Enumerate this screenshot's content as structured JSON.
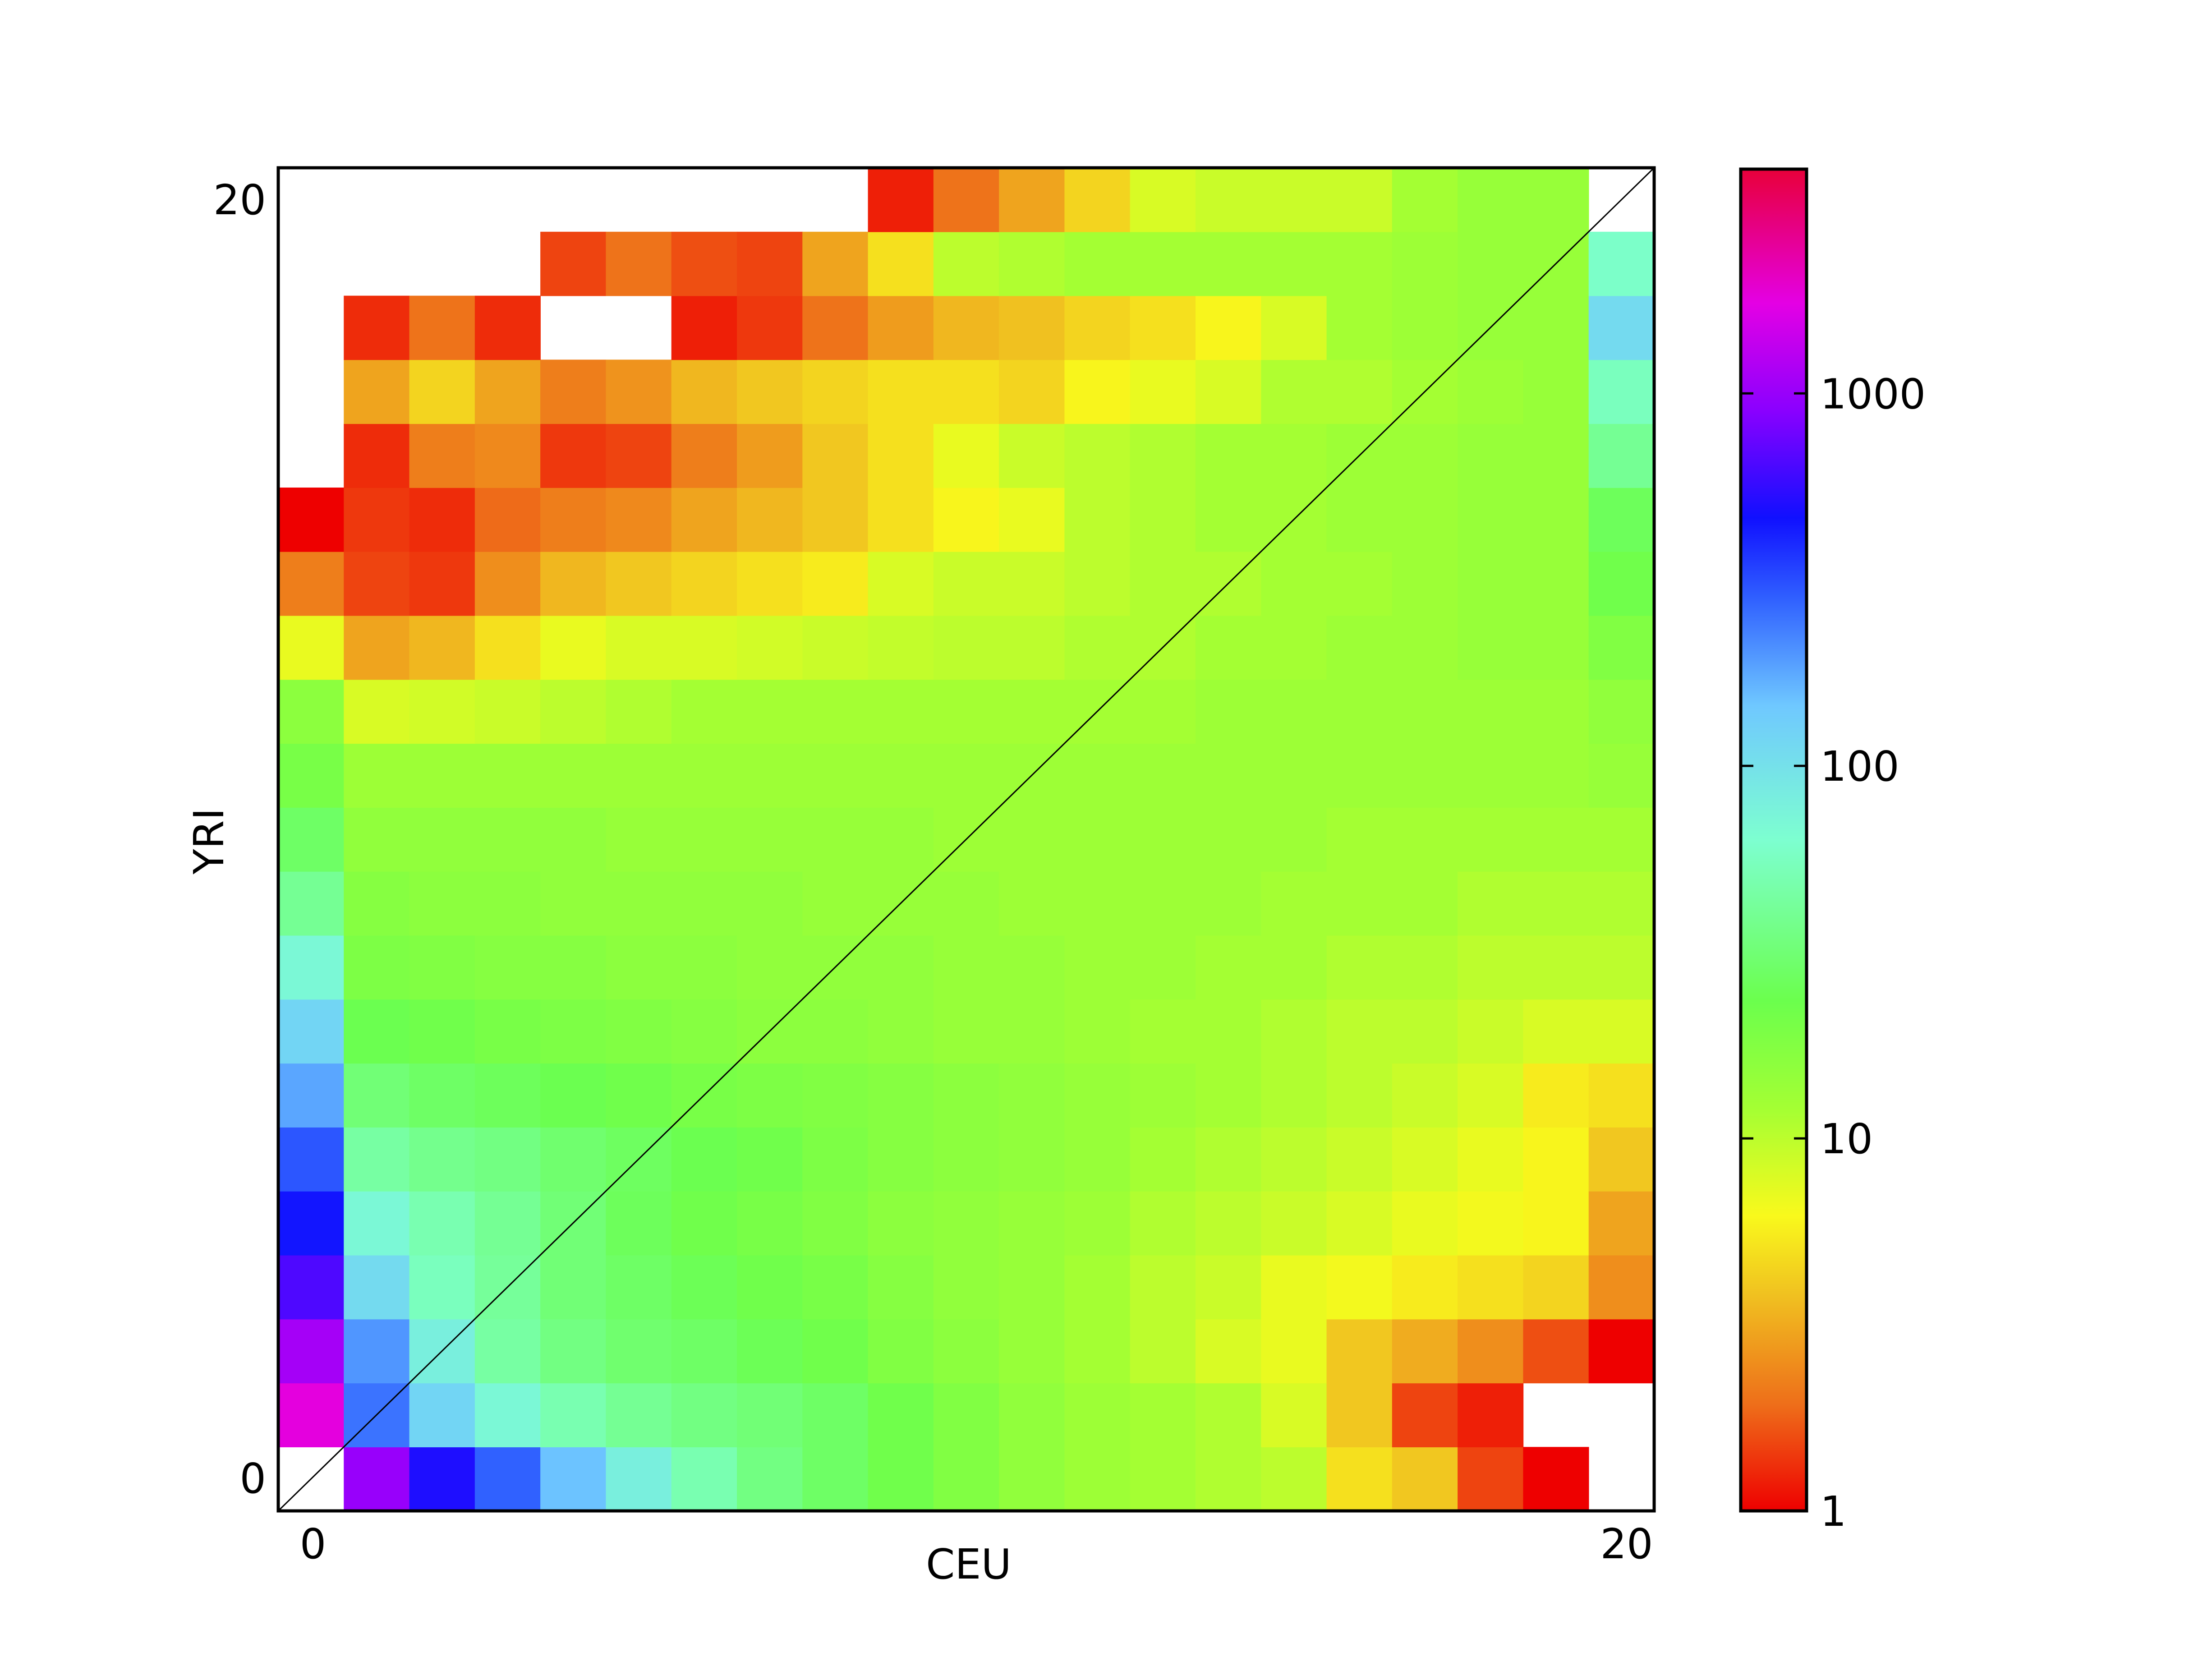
{
  "chart_data": {
    "type": "heatmap",
    "xlabel": "CEU",
    "ylabel": "YRI",
    "x_range": [
      0,
      20
    ],
    "y_range": [
      0,
      20
    ],
    "x_tick_labels": [
      "0",
      "20"
    ],
    "y_tick_labels": [
      "0",
      "20"
    ],
    "color_scale": "log",
    "color_range": [
      1,
      4000
    ],
    "colorbar_ticks": [
      "1",
      "10",
      "100",
      "1000"
    ],
    "colorbar_tick_values": [
      1,
      10,
      100,
      1000
    ],
    "diagonal_line": true,
    "note": "rows indexed by YRI count 0..20 (bottom to top), columns by CEU count 0..20; null = empty (masked) cell",
    "z": [
      [
        null,
        1000,
        500,
        280,
        150,
        80,
        50,
        35,
        28,
        22,
        18,
        15,
        13,
        12,
        11,
        10,
        5,
        4,
        1.5,
        1,
        null
      ],
      [
        1800,
        250,
        120,
        70,
        50,
        40,
        35,
        32,
        28,
        22,
        18,
        15,
        13,
        12,
        11,
        8,
        4,
        1.5,
        1.2,
        null,
        null
      ],
      [
        1100,
        200,
        80,
        45,
        35,
        30,
        28,
        25,
        22,
        18,
        16,
        14,
        12,
        10,
        8,
        7,
        4,
        3.2,
        2.5,
        1.6,
        1
      ],
      [
        650,
        110,
        55,
        42,
        32,
        28,
        25,
        22,
        20,
        17,
        15,
        14,
        12,
        10,
        9,
        7,
        6.5,
        5.5,
        5,
        4.5,
        2.5
      ],
      [
        450,
        70,
        50,
        40,
        32,
        26,
        22,
        20,
        18,
        16,
        15,
        14,
        13,
        11,
        10,
        9,
        8,
        7,
        6.5,
        6,
        3
      ],
      [
        300,
        45,
        38,
        35,
        30,
        27,
        24,
        22,
        19,
        17,
        16,
        15,
        14,
        12,
        11,
        10,
        9,
        8,
        7,
        6,
        4
      ],
      [
        180,
        32,
        28,
        26,
        24,
        22,
        20,
        19,
        18,
        17,
        16,
        15,
        14,
        13,
        12,
        11,
        10,
        9,
        8,
        5.5,
        5
      ],
      [
        120,
        24,
        22,
        20,
        19,
        18,
        17,
        16,
        16,
        15,
        14,
        14,
        13,
        12,
        12,
        11,
        10,
        10,
        9,
        8,
        8
      ],
      [
        70,
        19,
        18,
        17,
        17,
        16,
        16,
        15,
        15,
        15,
        14,
        14,
        13,
        13,
        12,
        12,
        11,
        11,
        10,
        10,
        10
      ],
      [
        40,
        17,
        16,
        16,
        15,
        15,
        15,
        15,
        14,
        14,
        14,
        13,
        13,
        13,
        13,
        12,
        12,
        12,
        11,
        11,
        11
      ],
      [
        28,
        15,
        15,
        15,
        15,
        14,
        14,
        14,
        14,
        14,
        13,
        13,
        13,
        13,
        13,
        13,
        12,
        12,
        12,
        12,
        12
      ],
      [
        20,
        13,
        13,
        13,
        13,
        13,
        13,
        13,
        13,
        13,
        13,
        13,
        13,
        13,
        13,
        13,
        13,
        13,
        13,
        13,
        14
      ],
      [
        16,
        8,
        8.5,
        9,
        10,
        11,
        12,
        12,
        12,
        12,
        12,
        12,
        12,
        12,
        13,
        13,
        13,
        13,
        13,
        13,
        15
      ],
      [
        7,
        3,
        3.5,
        5,
        7,
        8,
        8,
        8.5,
        9,
        9.5,
        10,
        10,
        11,
        11,
        12,
        12,
        13,
        13,
        14,
        14,
        18
      ],
      [
        2.2,
        1.5,
        1.4,
        2.5,
        3.5,
        4,
        4.5,
        5,
        5.5,
        8,
        9,
        9,
        10,
        11,
        11,
        12,
        12,
        13,
        14,
        14,
        22
      ],
      [
        1,
        1.4,
        1.3,
        1.9,
        2.2,
        2.4,
        3,
        3.5,
        4,
        5,
        6,
        7,
        10,
        11,
        12,
        12,
        13,
        13,
        14,
        14,
        26
      ],
      [
        null,
        1.3,
        2.2,
        2.4,
        1.4,
        1.5,
        2.2,
        2.8,
        4,
        5,
        7,
        9,
        10,
        11,
        12,
        12,
        13,
        13,
        14,
        14,
        40
      ],
      [
        null,
        3,
        4.5,
        3,
        2.2,
        2.6,
        3.5,
        4,
        4.5,
        5,
        5,
        4.5,
        6,
        7,
        8,
        11,
        11,
        12,
        13,
        14,
        55
      ],
      [
        null,
        1.3,
        2,
        1.3,
        null,
        null,
        1.2,
        1.4,
        2,
        2.8,
        3.5,
        3.8,
        4.5,
        5,
        6,
        8,
        12,
        13,
        14,
        14,
        110
      ],
      [
        null,
        null,
        null,
        null,
        1.5,
        2,
        1.6,
        1.5,
        3,
        5,
        10,
        11,
        12,
        12,
        12,
        12,
        12,
        13,
        14,
        14,
        60
      ],
      [
        null,
        null,
        null,
        null,
        null,
        null,
        null,
        null,
        null,
        1.2,
        2,
        3,
        4.5,
        8,
        9,
        9,
        9,
        12,
        14,
        14,
        null
      ]
    ]
  }
}
